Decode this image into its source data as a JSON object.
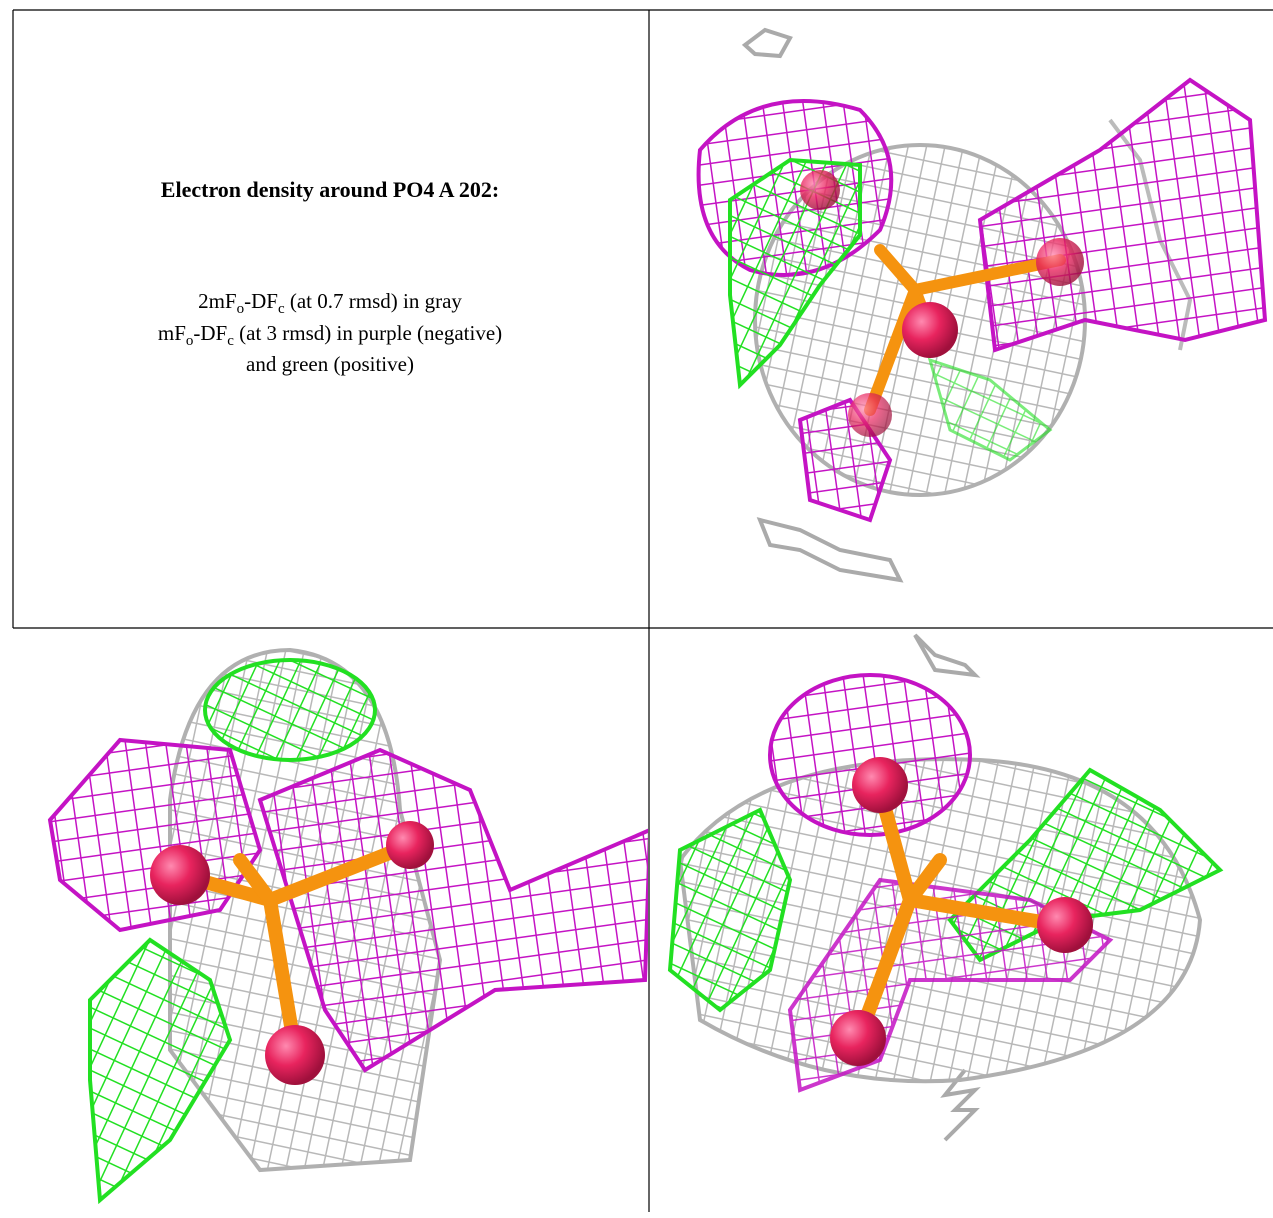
{
  "caption": {
    "title": "Electron density around PO4 A 202:",
    "lines": [
      [
        {
          "text": "2mF"
        },
        {
          "text": "o",
          "sub": true
        },
        {
          "text": "-DF"
        },
        {
          "text": "c",
          "sub": true
        },
        {
          "text": " (at 0.7 rmsd) in gray"
        }
      ],
      [
        {
          "text": "mF"
        },
        {
          "text": "o",
          "sub": true
        },
        {
          "text": "-DF"
        },
        {
          "text": "c",
          "sub": true
        },
        {
          "text": " (at 3 rmsd) in purple (negative)"
        }
      ],
      [
        {
          "text": "and green (positive)"
        }
      ]
    ]
  }
}
